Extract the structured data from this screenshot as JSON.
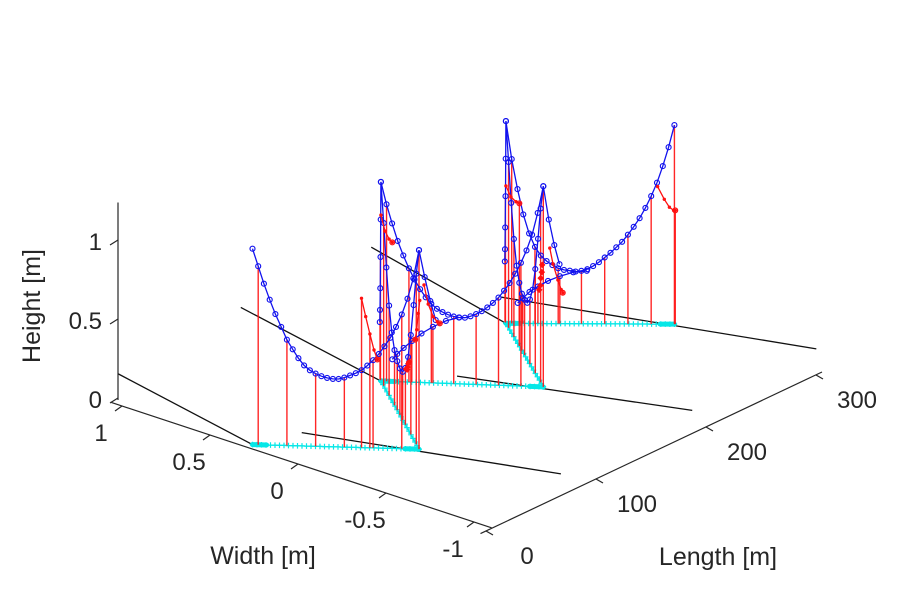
{
  "chart_data": {
    "type": "line3d-cross-sections",
    "title": "",
    "legend": null,
    "grid": false,
    "axes": {
      "x": {
        "label": "Width [m]",
        "ticks": [
          1,
          0.5,
          0,
          -0.5,
          -1
        ],
        "lim": [
          -1.1,
          1.1
        ]
      },
      "y": {
        "label": "Length [m]",
        "ticks": [
          0,
          100,
          200,
          300
        ],
        "lim": [
          0,
          300
        ]
      },
      "z": {
        "label": "Height [m]",
        "ticks": [
          0,
          0.5,
          1
        ],
        "lim": [
          0,
          1.28
        ]
      }
    },
    "view": {
      "origin": [
        298,
        464
      ],
      "e_width": [
        -176,
        -58
      ],
      "e_length": [
        1.1,
        -0.52
      ],
      "e_height": [
        0,
        -158
      ]
    },
    "colors": {
      "profile": "#1212ee",
      "track": "#06e7e7",
      "stems": "#ff1414",
      "plan_lines": "#111111",
      "axis": "#262626",
      "bank_marks": "#ff1010",
      "background": "#ffffff"
    },
    "path_nodes": [
      [
        0.29,
        5
      ],
      [
        -0.3,
        62
      ],
      [
        0.31,
        125
      ],
      [
        -0.275,
        179
      ],
      [
        0.3,
        237
      ],
      [
        -0.27,
        299
      ]
    ],
    "segments": [
      {
        "name": "section-1",
        "kind": "section",
        "from": 0,
        "to": 1,
        "heights": [
          1.24,
          1.13,
          1.02,
          0.92,
          0.83,
          0.75,
          0.67,
          0.61,
          0.555,
          0.51,
          0.48,
          0.46,
          0.445,
          0.435,
          0.43,
          0.43,
          0.44,
          0.455,
          0.47,
          0.49,
          0.52,
          0.555,
          0.595,
          0.645,
          0.7,
          0.77,
          0.85,
          0.95,
          1.08,
          1.26
        ],
        "overshoot": [
          [
            1.034,
            1.09
          ],
          [
            1.068,
            0.94
          ],
          [
            1.1,
            0.82
          ]
        ],
        "stem_idx": [
          1,
          6,
          11,
          16,
          21,
          26,
          29
        ]
      },
      {
        "name": "transit-1",
        "kind": "transit",
        "from": 1,
        "to": 2,
        "heights": [
          1.26,
          1.08,
          0.85,
          0.63,
          0.46,
          0.36,
          0.305,
          0.295,
          0.31,
          0.35,
          0.43,
          0.57,
          0.78,
          1.03,
          1.26
        ],
        "plunge": [
          [
            1.006,
            1.02
          ],
          [
            1.012,
            0.78
          ],
          [
            1.018,
            0.58
          ],
          [
            1.024,
            0.44
          ],
          [
            1.03,
            0.36
          ]
        ],
        "stem_idx": [
          1,
          3,
          5,
          6,
          7,
          8,
          9,
          11,
          13
        ],
        "plunge_stem_idx": [
          1,
          3
        ]
      },
      {
        "name": "section-2",
        "kind": "section",
        "from": 2,
        "to": 3,
        "heights": [
          1.26,
          1.12,
          1.0,
          0.89,
          0.8,
          0.72,
          0.65,
          0.59,
          0.54,
          0.5,
          0.47,
          0.45,
          0.435,
          0.425,
          0.42,
          0.42,
          0.43,
          0.445,
          0.465,
          0.49,
          0.52,
          0.555,
          0.6,
          0.65,
          0.71,
          0.78,
          0.86,
          0.96,
          1.1,
          1.27
        ],
        "overshoot": [
          [
            1.034,
            1.06
          ],
          [
            1.068,
            0.9
          ],
          [
            1.1,
            0.78
          ]
        ],
        "stem_idx": [
          1,
          5,
          9,
          13,
          17,
          21,
          25,
          29
        ],
        "arc": {
          "t": [
            0.07,
            0.1,
            0.14,
            0.19,
            0.25,
            0.32,
            0.4,
            0.48
          ],
          "z": [
            0.14,
            0.175,
            0.215,
            0.26,
            0.31,
            0.355,
            0.395,
            0.42
          ]
        },
        "arc_stem_idx": [
          1,
          3,
          5
        ]
      },
      {
        "name": "transit-2",
        "kind": "transit",
        "from": 3,
        "to": 4,
        "heights": [
          1.27,
          1.1,
          0.88,
          0.66,
          0.5,
          0.41,
          0.36,
          0.35,
          0.36,
          0.4,
          0.48,
          0.62,
          0.82,
          1.05,
          1.28
        ],
        "plunge": [
          [
            1.006,
            1.04
          ],
          [
            1.012,
            0.8
          ],
          [
            1.018,
            0.6
          ],
          [
            1.024,
            0.46
          ],
          [
            1.03,
            0.38
          ]
        ],
        "stem_idx": [
          1,
          3,
          5,
          7,
          8,
          9,
          11,
          13
        ],
        "plunge_stem_idx": [
          1,
          3
        ]
      },
      {
        "name": "section-3",
        "kind": "section",
        "from": 4,
        "to": 5,
        "heights": [
          1.28,
          1.04,
          0.85,
          0.69,
          0.57,
          0.485,
          0.43,
          0.395,
          0.37,
          0.35,
          0.34,
          0.335,
          0.33,
          0.335,
          0.345,
          0.365,
          0.39,
          0.42,
          0.45,
          0.485,
          0.52,
          0.565,
          0.615,
          0.67,
          0.735,
          0.81,
          0.895,
          1.0,
          1.12,
          1.26
        ],
        "stem_idx": [
          1,
          5,
          9,
          13,
          17,
          21,
          25,
          29
        ],
        "arc": {
          "t": [
            0.07,
            0.1,
            0.14,
            0.19,
            0.25,
            0.32,
            0.4,
            0.48
          ],
          "z": [
            0.13,
            0.16,
            0.2,
            0.235,
            0.27,
            0.3,
            0.325,
            0.335
          ]
        },
        "arc_stem_idx": [
          1,
          3,
          5
        ]
      }
    ],
    "black_lines": [
      {
        "name": "bank-line-1a",
        "from": [
          1.24,
          35
        ],
        "to": [
          0.29,
          5
        ]
      },
      {
        "name": "bank-line-1b",
        "from": [
          0.21,
          37
        ],
        "to": [
          -0.95,
          87
        ]
      },
      {
        "name": "bank-line-2a",
        "from": [
          1.3,
          156
        ],
        "to": [
          0.31,
          125
        ]
      },
      {
        "name": "bank-line-2b",
        "from": [
          0.09,
          159
        ],
        "to": [
          -0.94,
          208
        ]
      },
      {
        "name": "bank-line-3a",
        "from": [
          1.29,
          273
        ],
        "to": [
          0.3,
          237
        ]
      },
      {
        "name": "bank-line-3b",
        "from": [
          0.5,
          265
        ],
        "to": [
          -0.92,
          324
        ]
      }
    ],
    "red_marks": [
      {
        "name": "bank-fit-s1-left",
        "seg": 0,
        "t": [
          0.655,
          0.68,
          0.705,
          0.73,
          0.75
        ],
        "z": [
          0.945,
          0.83,
          0.72,
          0.62,
          0.56
        ],
        "stems": [
          0,
          2
        ]
      },
      {
        "name": "bank-fit-s1-hook",
        "seg": 0,
        "t": [
          1.03,
          1.055,
          1.085,
          1.11,
          1.125
        ],
        "z": [
          1.04,
          0.92,
          0.84,
          0.81,
          0.8
        ]
      },
      {
        "name": "bank-fit-t1-right",
        "seg": 1,
        "t": [
          -0.02,
          0.02,
          0.06,
          0.1
        ],
        "z": [
          0.95,
          0.85,
          0.73,
          0.65
        ]
      },
      {
        "name": "bank-fit-t1-cluster",
        "seg": 1,
        "t": [
          0.26,
          0.3,
          0.34,
          0.31,
          0.28
        ],
        "z": [
          0.44,
          0.39,
          0.36,
          0.37,
          0.42
        ],
        "cluster": true
      },
      {
        "name": "bank-fit-s2-start",
        "seg": 2,
        "t": [
          0.0,
          0.025,
          0.05,
          0.07
        ],
        "z": [
          1.05,
          0.95,
          0.9,
          0.88
        ]
      },
      {
        "name": "bank-fit-s2-hook",
        "seg": 2,
        "t": [
          1.04,
          1.06,
          1.09,
          1.11,
          1.12
        ],
        "z": [
          0.88,
          0.78,
          0.68,
          0.62,
          0.6
        ]
      },
      {
        "name": "bank-fit-t2-cluster",
        "seg": 3,
        "t": [
          0.03,
          0.07,
          0.11,
          0.08,
          0.04
        ],
        "z": [
          0.76,
          0.66,
          0.57,
          0.61,
          0.71
        ],
        "cluster": true
      },
      {
        "name": "bank-fit-s3-start",
        "seg": 4,
        "t": [
          0.0,
          0.03,
          0.06,
          0.08
        ],
        "z": [
          0.87,
          0.8,
          0.77,
          0.76
        ],
        "stems": [
          3
        ]
      },
      {
        "name": "bank-fit-s3-limb",
        "seg": 4,
        "t": [
          0.9,
          0.94,
          0.97,
          0.995,
          1.005
        ],
        "z": [
          0.87,
          0.79,
          0.74,
          0.72,
          0.72
        ],
        "stems": [
          4
        ]
      }
    ],
    "style": {
      "tick_font_px": 24,
      "label_font_px": 25,
      "profile_marker_r": 2.5,
      "track_marker_half": 2.8,
      "section_track_points": 38,
      "transit_track_points": 20
    }
  }
}
